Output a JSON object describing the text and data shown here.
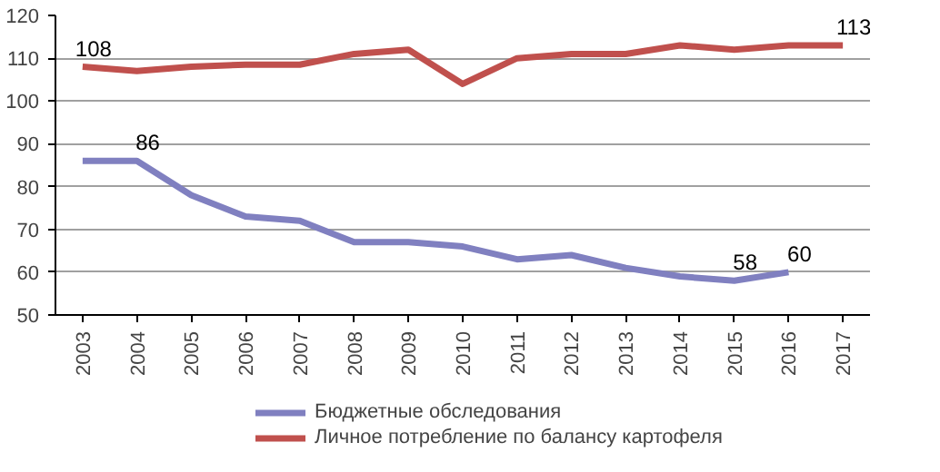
{
  "chart_data": {
    "type": "line",
    "categories": [
      "2003",
      "2004",
      "2005",
      "2006",
      "2007",
      "2008",
      "2009",
      "2010",
      "2011",
      "2012",
      "2013",
      "2014",
      "2015",
      "2016",
      "2017"
    ],
    "series": [
      {
        "name": "Бюджетные обследования",
        "color": "#8080c0",
        "values": [
          86,
          86,
          78,
          73,
          72,
          67,
          67,
          66,
          63,
          64,
          61,
          59,
          58,
          60,
          null
        ],
        "value_labels": [
          null,
          "86",
          null,
          null,
          null,
          null,
          null,
          null,
          null,
          null,
          null,
          null,
          "58",
          "60",
          null
        ]
      },
      {
        "name": "Личное потребление по балансу картофеля",
        "color": "#c0504d",
        "values": [
          108,
          107,
          108,
          108.5,
          108.5,
          111,
          112,
          104,
          110,
          111,
          111,
          113,
          112,
          113,
          113
        ],
        "value_labels": [
          "108",
          null,
          null,
          null,
          null,
          null,
          null,
          null,
          null,
          null,
          null,
          null,
          null,
          null,
          "113"
        ]
      }
    ],
    "ylim": [
      50,
      120
    ],
    "yticks": [
      50,
      60,
      70,
      80,
      90,
      100,
      110,
      120
    ],
    "grid": "y",
    "legend": "bottom",
    "marker": "none",
    "line_style": "solid"
  }
}
